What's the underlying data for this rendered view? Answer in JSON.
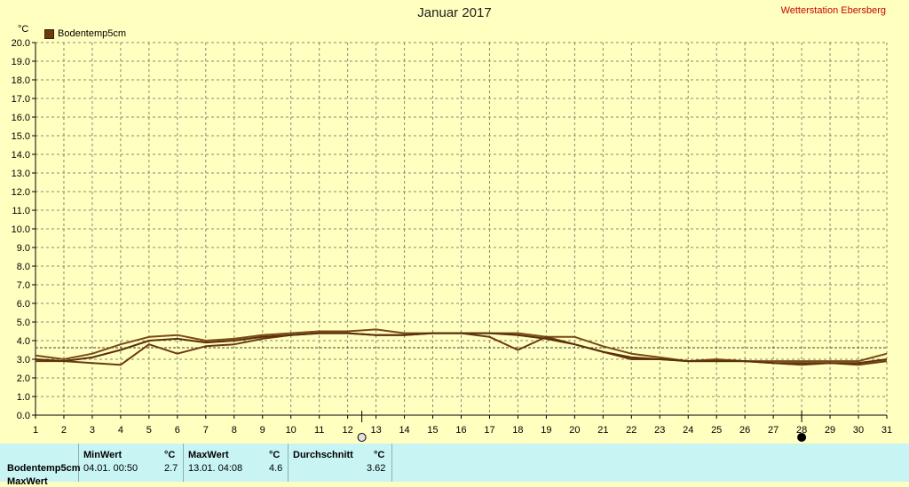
{
  "header": {
    "title": "Januar 2017",
    "station": "Wetterstation Ebersberg"
  },
  "legend": {
    "label": "Bodentemp5cm",
    "color": "#6b3a10"
  },
  "unit_label": "°C",
  "moon_phases": [
    {
      "day": 12.5,
      "phase": "full-moon"
    },
    {
      "day": 28,
      "phase": "new-moon"
    }
  ],
  "chart_data": {
    "type": "line",
    "title": "Januar 2017",
    "xlabel": "",
    "ylabel": "°C",
    "xlim": [
      1,
      31
    ],
    "ylim": [
      0,
      20
    ],
    "x_ticks": [
      1,
      2,
      3,
      4,
      5,
      6,
      7,
      8,
      9,
      10,
      11,
      12,
      13,
      14,
      15,
      16,
      17,
      18,
      19,
      20,
      21,
      22,
      23,
      24,
      25,
      26,
      27,
      28,
      29,
      30,
      31
    ],
    "y_ticks": [
      "0.0",
      "1.0",
      "2.0",
      "3.0",
      "4.0",
      "5.0",
      "6.0",
      "7.0",
      "8.0",
      "9.0",
      "10.0",
      "11.0",
      "12.0",
      "13.0",
      "14.0",
      "15.0",
      "16.0",
      "17.0",
      "18.0",
      "19.0",
      "20.0"
    ],
    "grid": true,
    "legend": "top-left",
    "reference_line": 3.62,
    "series": [
      {
        "name": "Bodentemp5cm",
        "color": "#7a4a14",
        "x": [
          1,
          2,
          3,
          4,
          5,
          6,
          7,
          8,
          9,
          10,
          11,
          12,
          13,
          14,
          15,
          16,
          17,
          18,
          19,
          20,
          21,
          22,
          23,
          24,
          25,
          26,
          27,
          28,
          29,
          30,
          31
        ],
        "y": [
          3.2,
          3.0,
          3.3,
          3.8,
          4.2,
          4.3,
          4.0,
          4.1,
          4.3,
          4.4,
          4.5,
          4.5,
          4.6,
          4.4,
          4.4,
          4.4,
          4.4,
          4.4,
          4.2,
          4.2,
          3.7,
          3.3,
          3.1,
          2.9,
          3.0,
          2.9,
          2.9,
          2.9,
          2.9,
          2.9,
          3.3
        ]
      },
      {
        "name": "",
        "color": "#6b3a10",
        "x": [
          1,
          2,
          3,
          4,
          5,
          6,
          7,
          8,
          9,
          10,
          11,
          12,
          13,
          14,
          15,
          16,
          17,
          18,
          19,
          20,
          21,
          22,
          23,
          24,
          25,
          26,
          27,
          28,
          29,
          30,
          31
        ],
        "y": [
          2.9,
          2.9,
          2.8,
          2.7,
          3.8,
          3.3,
          3.7,
          3.8,
          4.1,
          4.3,
          4.4,
          4.4,
          4.3,
          4.3,
          4.4,
          4.4,
          4.2,
          3.5,
          4.2,
          3.8,
          3.4,
          3.0,
          3.0,
          2.9,
          2.9,
          2.9,
          2.8,
          2.7,
          2.8,
          2.7,
          2.9
        ]
      },
      {
        "name": "",
        "color": "#5a300a",
        "x": [
          1,
          2,
          3,
          4,
          5,
          6,
          7,
          8,
          9,
          10,
          11,
          12,
          13,
          14,
          15,
          16,
          17,
          18,
          19,
          20,
          21,
          22,
          23,
          24,
          25,
          26,
          27,
          28,
          29,
          30,
          31
        ],
        "y": [
          3.0,
          2.9,
          3.1,
          3.5,
          4.0,
          4.1,
          3.9,
          4.0,
          4.2,
          4.3,
          4.4,
          4.4,
          4.3,
          4.3,
          4.4,
          4.4,
          4.4,
          4.3,
          4.1,
          3.8,
          3.4,
          3.1,
          3.0,
          2.9,
          2.9,
          2.9,
          2.8,
          2.8,
          2.8,
          2.8,
          3.0
        ]
      }
    ]
  },
  "stats": {
    "row_label": "Bodentemp5cm",
    "row2_label": "MaxWert",
    "min_header": "MinWert",
    "min_unit": "°C",
    "min_time": "04.01.  00:50",
    "min_value": "2.7",
    "max_header": "MaxWert",
    "max_unit": "°C",
    "max_time": "13.01.  04:08",
    "max_value": "4.6",
    "avg_header": "Durchschnitt",
    "avg_unit": "°C",
    "avg_value": "3.62"
  }
}
